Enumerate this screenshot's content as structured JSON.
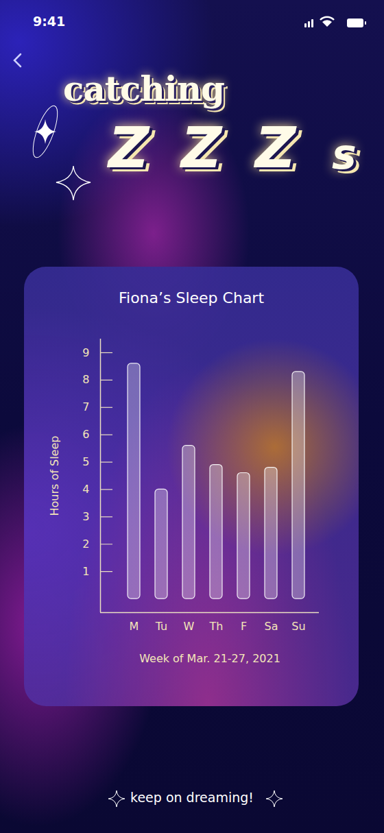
{
  "page": {
    "status_time": "9:41",
    "heading_top": "catching",
    "heading_bottom": "ZZZs",
    "footer": "keep on dreaming!"
  },
  "chart_data": {
    "type": "bar",
    "title": "Fiona’s Sleep Chart",
    "xlabel": "Week of Mar. 21-27, 2021",
    "ylabel": "Hours of Sleep",
    "categories": [
      "M",
      "Tu",
      "W",
      "Th",
      "F",
      "Sa",
      "Su"
    ],
    "values": [
      8.6,
      4.0,
      5.6,
      4.9,
      4.6,
      4.8,
      8.3
    ],
    "color": "#ffffff",
    "ylim": [
      -0.5,
      9.5
    ],
    "yticks": [
      1,
      2,
      3,
      4,
      5,
      6,
      7,
      8,
      9
    ],
    "grid": false
  }
}
